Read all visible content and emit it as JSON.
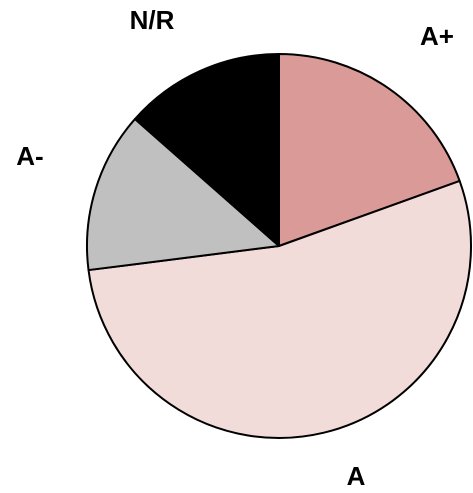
{
  "chart_data": {
    "type": "pie",
    "title": "",
    "slices": [
      {
        "label": "A+",
        "value": 19.5,
        "color": "#d99a98"
      },
      {
        "label": "A",
        "value": 53.5,
        "color": "#f2dcd9"
      },
      {
        "label": "A-",
        "value": 13.5,
        "color": "#c0c0c0"
      },
      {
        "label": "N/R",
        "value": 13.5,
        "color": "#000000"
      }
    ],
    "start_angle_deg": 0,
    "direction": "clockwise",
    "legend": "none"
  }
}
